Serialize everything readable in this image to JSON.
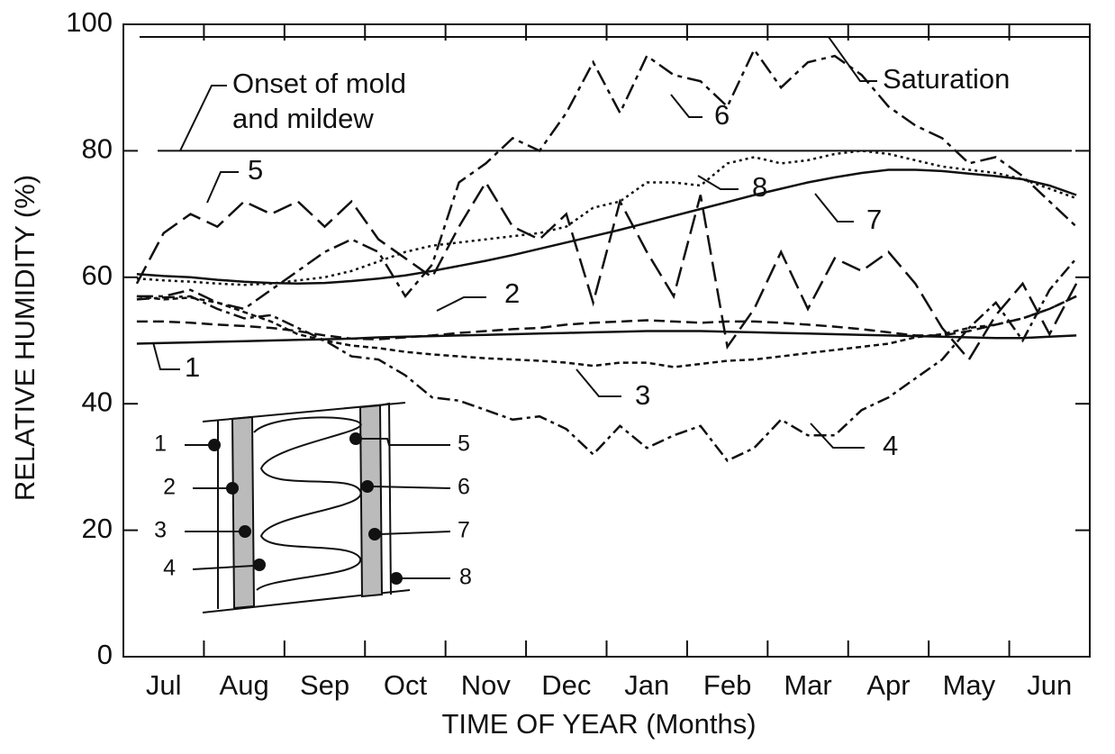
{
  "chart_data": {
    "type": "line",
    "x_label": "TIME OF YEAR (Months)",
    "y_label": "RELATIVE HUMIDITY (%)",
    "categories": [
      null,
      "Jul",
      null,
      null,
      "Aug",
      null,
      null,
      "Sep",
      null,
      null,
      "Oct",
      null,
      null,
      "Nov",
      null,
      null,
      "Dec",
      null,
      null,
      "Jan",
      null,
      null,
      "Feb",
      null,
      null,
      "Mar",
      null,
      null,
      "Apr",
      null,
      null,
      "May",
      null,
      null,
      "Jun",
      null
    ],
    "ylim": [
      0,
      100
    ],
    "yticks": [
      0,
      20,
      40,
      60,
      80,
      100
    ],
    "reference_lines": [
      {
        "value": 80,
        "label": [
          "Onset of mold",
          "and mildew"
        ]
      },
      {
        "value": 98,
        "label": [
          "Saturation"
        ]
      }
    ],
    "series": [
      {
        "name": "1",
        "color": "#111",
        "dash": "",
        "values": [
          49.5,
          49.6,
          49.7,
          49.8,
          49.9,
          50,
          50.1,
          50.2,
          50.3,
          50.5,
          50.6,
          50.7,
          50.8,
          50.9,
          51,
          51.1,
          51.2,
          51.3,
          51.4,
          51.5,
          51.5,
          51.5,
          51.4,
          51.3,
          51.2,
          51.1,
          51,
          50.9,
          50.8,
          50.7,
          50.6,
          50.5,
          50.4,
          50.4,
          50.6,
          50.8
        ]
      },
      {
        "name": "2",
        "color": "#111",
        "dash": "12 6",
        "values": [
          53,
          53,
          52.8,
          52.5,
          52.3,
          52,
          51.5,
          50.8,
          50.3,
          50.2,
          50.5,
          50.8,
          51.2,
          51.5,
          51.8,
          52,
          52.5,
          52.8,
          53,
          53.2,
          53,
          52.8,
          53,
          53,
          52.8,
          52.5,
          52.2,
          51.8,
          51.3,
          50.8,
          50.8,
          51.5,
          52.5,
          53.5,
          55,
          57
        ]
      },
      {
        "name": "3",
        "color": "#111",
        "dash": "6 4",
        "values": [
          57,
          56.5,
          56.8,
          56,
          54.5,
          53,
          51,
          50,
          49.2,
          48.8,
          48.2,
          47.8,
          47.5,
          47.2,
          47,
          46.8,
          46.5,
          46,
          46.5,
          46.5,
          45.8,
          46.3,
          46.8,
          47,
          47.5,
          48,
          48.5,
          49,
          49.5,
          50.5,
          51,
          52,
          52.5,
          53.5,
          55,
          57
        ]
      },
      {
        "name": "4",
        "color": "#111",
        "dash": "14 5 4 5",
        "values": [
          56.5,
          56.8,
          57,
          55,
          53.5,
          54,
          52,
          50,
          47.5,
          47,
          44.5,
          41,
          40.5,
          39,
          37.5,
          38,
          36,
          32,
          36.5,
          33,
          35,
          36.5,
          31,
          33,
          37.5,
          35,
          35,
          39,
          41,
          44,
          47,
          52,
          56,
          50,
          58,
          63
        ]
      },
      {
        "name": "5",
        "color": "#111",
        "dash": "22 8",
        "values": [
          59,
          67,
          70,
          68,
          72,
          70,
          72,
          68,
          72,
          66,
          63,
          60,
          68,
          75,
          68,
          66,
          70,
          56,
          72,
          64,
          57,
          73,
          49,
          55,
          64,
          55,
          63,
          61,
          64,
          59,
          52,
          47,
          54,
          59,
          51,
          59
        ]
      },
      {
        "name": "6",
        "color": "#111",
        "dash": "18 6 5 6",
        "values": [
          57,
          57,
          58,
          56,
          55,
          58,
          61,
          64,
          66,
          64,
          57,
          62,
          75,
          78,
          82,
          80,
          86,
          94,
          86,
          95,
          92,
          91,
          87,
          96,
          90,
          94,
          95,
          92,
          87,
          84,
          82,
          78,
          79,
          76,
          72,
          68
        ]
      },
      {
        "name": "7",
        "color": "#111",
        "dash": "",
        "values": [
          60.5,
          60.2,
          60,
          59.6,
          59.3,
          59.1,
          59,
          59.1,
          59.4,
          59.8,
          60.3,
          61,
          61.8,
          62.6,
          63.5,
          64.5,
          65.5,
          66.5,
          67.5,
          68.6,
          69.7,
          70.8,
          71.9,
          73,
          74,
          75,
          75.8,
          76.5,
          77,
          77,
          76.8,
          76.4,
          76,
          75.5,
          74.5,
          73
        ]
      },
      {
        "name": "8",
        "color": "#111",
        "dash": "3 4",
        "values": [
          59.8,
          59.5,
          59.3,
          59,
          58.8,
          59,
          59.5,
          60,
          61,
          62.5,
          64,
          65,
          65.5,
          66,
          66.5,
          67,
          68,
          71,
          72,
          75,
          75,
          74.5,
          78,
          79,
          78,
          78.5,
          79.5,
          80,
          79.5,
          78.5,
          77.5,
          77,
          76.5,
          75.5,
          74,
          72.5
        ]
      }
    ]
  }
}
